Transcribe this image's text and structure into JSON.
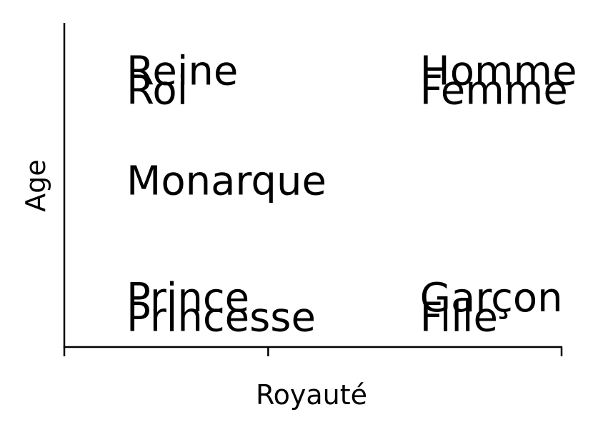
{
  "chart_data": {
    "type": "scatter",
    "xlabel": "Royauté",
    "ylabel": "Age",
    "xlim": [
      0,
      1
    ],
    "ylim": [
      0,
      1
    ],
    "x_ticks": [
      0,
      0.41,
      1
    ],
    "x_tick_labels": [
      "",
      "",
      ""
    ],
    "y_ticks": [],
    "grid": false,
    "points": [
      {
        "label": "Reine",
        "x": 0.125,
        "y": 0.81
      },
      {
        "label": "Roi",
        "x": 0.125,
        "y": 0.75
      },
      {
        "label": "Homme",
        "x": 0.715,
        "y": 0.81
      },
      {
        "label": "Femme",
        "x": 0.715,
        "y": 0.75
      },
      {
        "label": "Monarque",
        "x": 0.125,
        "y": 0.47
      },
      {
        "label": "Prince",
        "x": 0.125,
        "y": 0.11
      },
      {
        "label": "Princesse",
        "x": 0.125,
        "y": 0.05
      },
      {
        "label": "Garçon",
        "x": 0.715,
        "y": 0.11
      },
      {
        "label": "Fille",
        "x": 0.715,
        "y": 0.05
      }
    ]
  }
}
